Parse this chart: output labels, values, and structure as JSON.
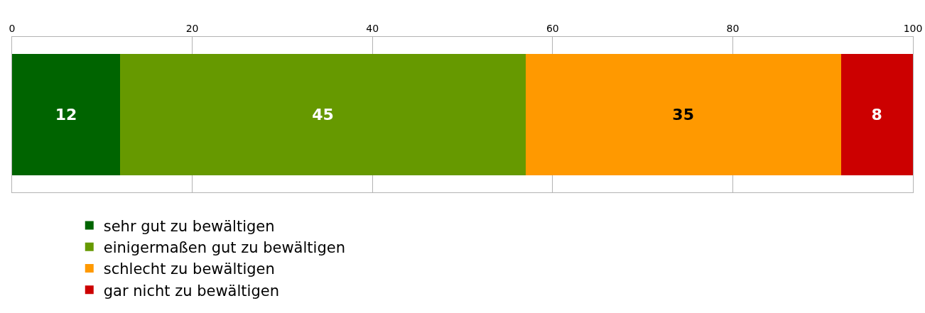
{
  "chart_data": {
    "type": "bar",
    "orientation": "horizontal",
    "stacked": true,
    "categories": [
      null
    ],
    "series": [
      {
        "name": "sehr gut zu bewältigen",
        "color": "#006400",
        "values": [
          12
        ]
      },
      {
        "name": "einigermaßen gut zu bewältigen",
        "color": "#669900",
        "values": [
          45
        ]
      },
      {
        "name": "schlecht zu bewältigen",
        "color": "#ff9900",
        "values": [
          35
        ]
      },
      {
        "name": "gar nicht zu bewältigen",
        "color": "#cc0000",
        "values": [
          8
        ]
      }
    ],
    "xlim": [
      0,
      100
    ],
    "xticks": [
      0,
      20,
      40,
      60,
      80,
      100
    ],
    "grid": "x",
    "legend": "bottom",
    "data_labels": true,
    "tick_labels": "x"
  }
}
